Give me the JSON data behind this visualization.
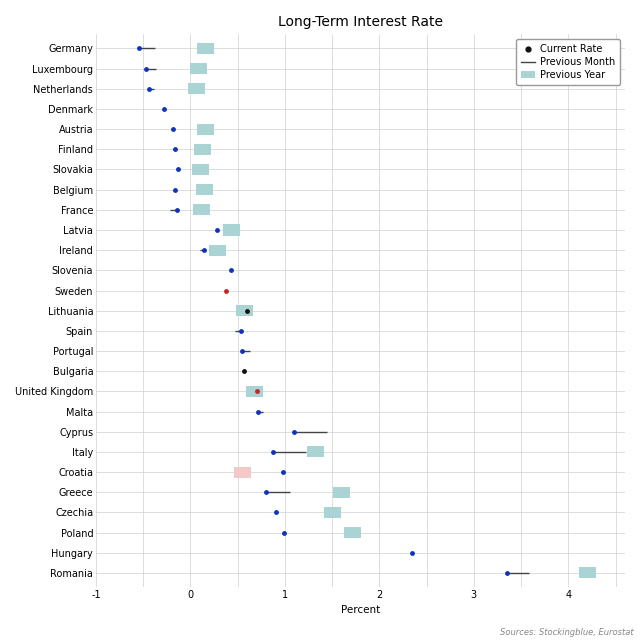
{
  "title": "Long-Term Interest Rate",
  "xlabel": "Percent",
  "source_text": "Sources: Stockingblue, Eurostat",
  "countries": [
    "Germany",
    "Luxembourg",
    "Netherlands",
    "Denmark",
    "Austria",
    "Finland",
    "Slovakia",
    "Belgium",
    "France",
    "Latvia",
    "Ireland",
    "Slovenia",
    "Sweden",
    "Lithuania",
    "Spain",
    "Portugal",
    "Bulgaria",
    "United Kingdom",
    "Malta",
    "Cyprus",
    "Italy",
    "Croatia",
    "Greece",
    "Czechia",
    "Poland",
    "Hungary",
    "Romania"
  ],
  "current_rate": [
    -0.55,
    -0.47,
    -0.44,
    -0.28,
    -0.18,
    -0.16,
    -0.13,
    -0.16,
    -0.14,
    0.28,
    0.14,
    0.43,
    0.38,
    0.6,
    0.53,
    0.55,
    0.57,
    0.7,
    0.72,
    1.1,
    0.87,
    0.98,
    0.8,
    0.9,
    0.99,
    2.35,
    3.35
  ],
  "prev_month_end": [
    -0.38,
    -0.36,
    -0.39,
    null,
    -0.18,
    -0.18,
    -0.15,
    -0.18,
    -0.22,
    null,
    0.1,
    null,
    null,
    null,
    0.47,
    0.63,
    null,
    null,
    0.77,
    1.45,
    1.22,
    null,
    1.05,
    null,
    0.97,
    2.35,
    3.58
  ],
  "prev_year": [
    0.16,
    0.09,
    0.06,
    null,
    0.16,
    0.13,
    0.11,
    0.15,
    0.12,
    0.43,
    0.29,
    null,
    null,
    0.57,
    null,
    null,
    null,
    0.68,
    null,
    null,
    1.32,
    0.55,
    1.6,
    1.5,
    1.72,
    null,
    4.2
  ],
  "dot_color": [
    "blue",
    "blue",
    "blue",
    "blue",
    "blue",
    "blue",
    "blue",
    "blue",
    "blue",
    "blue",
    "blue",
    "blue",
    "red",
    "black",
    "blue",
    "blue",
    "black",
    "red",
    "blue",
    "blue",
    "blue",
    "blue",
    "blue",
    "blue",
    "blue",
    "blue",
    "blue"
  ],
  "prev_year_bg": [
    "teal",
    "teal",
    "teal",
    "none",
    "teal",
    "teal",
    "teal",
    "teal",
    "teal",
    "teal",
    "teal",
    "none",
    "pink",
    "teal",
    "none",
    "none",
    "none",
    "teal",
    "pink",
    "none",
    "teal",
    "pink",
    "teal",
    "teal",
    "teal",
    "pink",
    "teal"
  ],
  "xlim": [
    -1.0,
    4.6
  ],
  "xticks": [
    -1.0,
    -0.5,
    0.0,
    0.5,
    1.0,
    1.5,
    2.0,
    2.5,
    3.0,
    3.5,
    4.0,
    4.5
  ],
  "xtick_labels": [
    "-1",
    "",
    "0",
    "",
    "1",
    "",
    "2",
    "",
    "3",
    "",
    "4",
    ""
  ],
  "teal_color": "#aad4d4",
  "pink_color": "#f5c8c8",
  "line_color": "#444444",
  "bg_color": "#ffffff",
  "grid_color": "#d0d0d0",
  "dot_blue": "#1133bb",
  "dot_red": "#cc2222",
  "dot_black": "#111111",
  "figsize": [
    6.4,
    6.4
  ],
  "dpi": 100,
  "title_fontsize": 10,
  "label_fontsize": 7,
  "tick_fontsize": 7,
  "legend_fontsize": 7
}
